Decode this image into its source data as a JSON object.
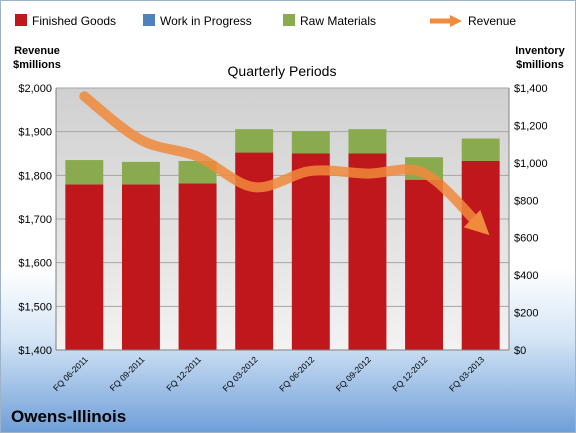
{
  "company": "Owens-Illinois",
  "chart_data": {
    "type": "bar",
    "title": "Quarterly Periods",
    "categories": [
      "FQ 06-2011",
      "FQ 09-2011",
      "FQ 12-2011",
      "FQ 03-2012",
      "FQ 06-2012",
      "FQ 09-2012",
      "FQ 12-2012",
      "FQ 03-2013"
    ],
    "stacked": true,
    "series": [
      {
        "name": "Finished Goods",
        "color": "#c0171c",
        "axis": "right",
        "values": [
          885,
          885,
          890,
          1055,
          1050,
          1050,
          910,
          1010
        ]
      },
      {
        "name": "Work in Progress",
        "color": "#4f81bd",
        "axis": "right",
        "values": [
          0,
          0,
          0,
          0,
          0,
          0,
          0,
          0
        ]
      },
      {
        "name": "Raw Materials",
        "color": "#8aab4d",
        "axis": "right",
        "values": [
          130,
          120,
          120,
          125,
          120,
          130,
          120,
          120
        ]
      },
      {
        "name": "Revenue",
        "color": "#f08a3c",
        "axis": "left",
        "type": "line",
        "values": [
          1981,
          1881,
          1843,
          1773,
          1810,
          1804,
          1805,
          1682
        ]
      }
    ],
    "left_axis": {
      "label": [
        "Revenue",
        "$millions"
      ],
      "ylim": [
        1400,
        2000
      ],
      "ticks": [
        1400,
        1500,
        1600,
        1700,
        1800,
        1900,
        2000
      ],
      "tick_labels": [
        "$1,400",
        "$1,500",
        "$1,600",
        "$1,700",
        "$1,800",
        "$1,900",
        "$2,000"
      ]
    },
    "right_axis": {
      "label": [
        "Inventory",
        "$millions"
      ],
      "ylim": [
        0,
        1400
      ],
      "ticks": [
        0,
        200,
        400,
        600,
        800,
        1000,
        1200,
        1400
      ],
      "tick_labels": [
        "$0",
        "$200",
        "$400",
        "$600",
        "$800",
        "$1,000",
        "$1,200",
        "$1,400"
      ]
    },
    "legend_position": "top",
    "grid": true
  }
}
